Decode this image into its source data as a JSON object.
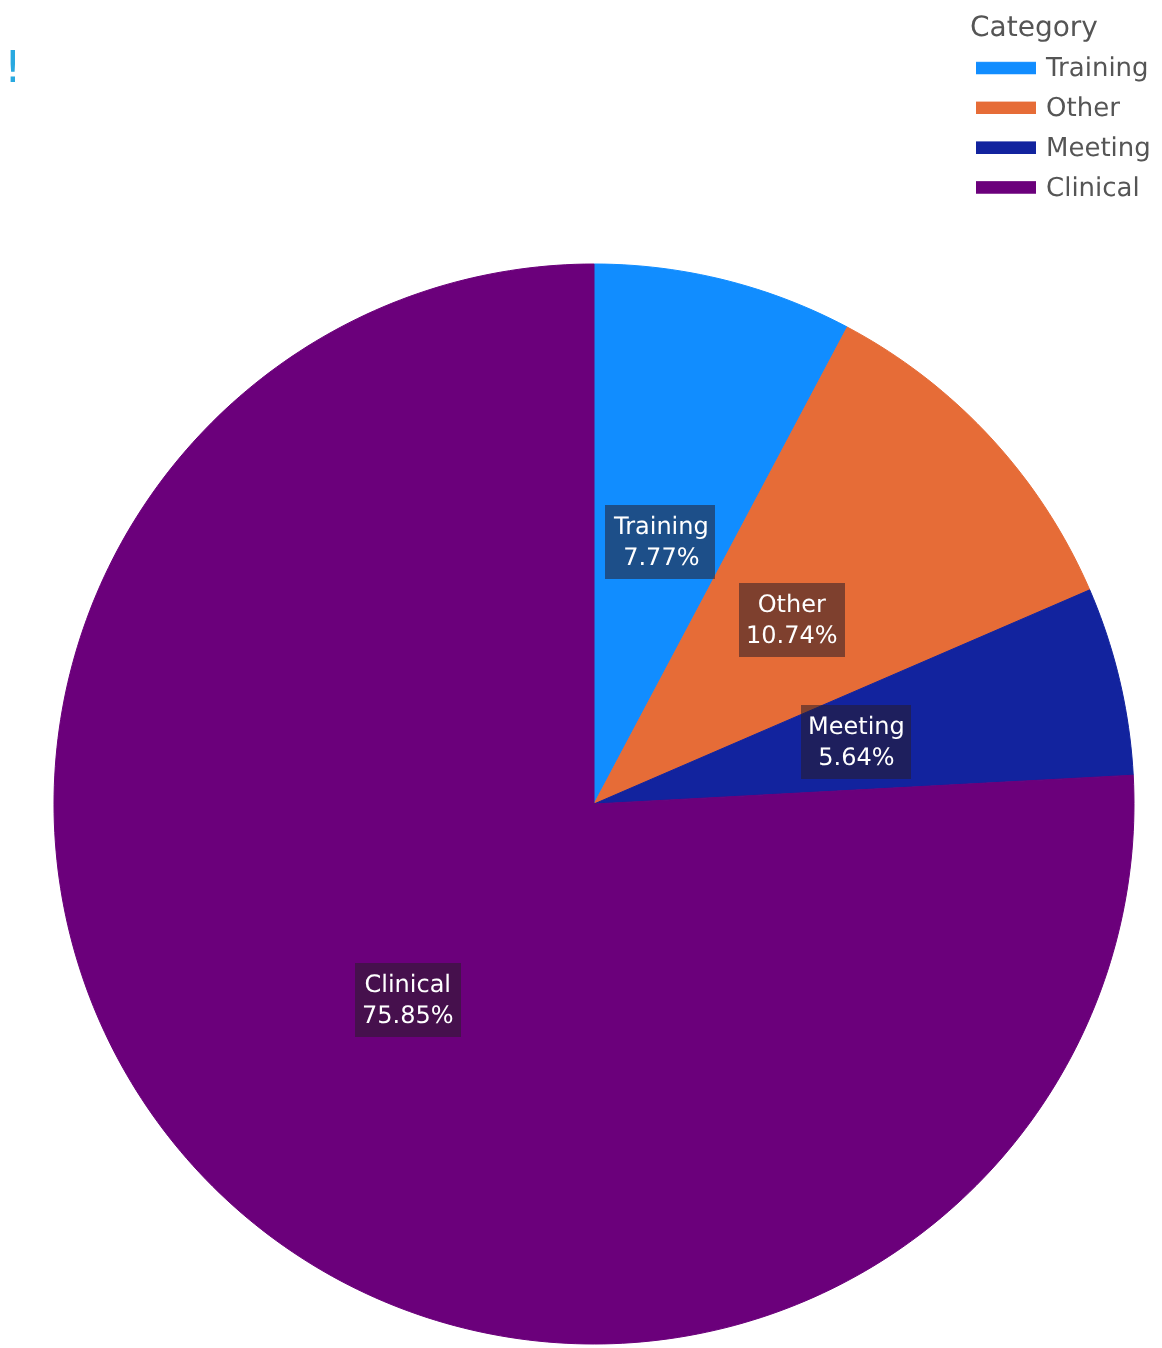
{
  "chart_data": {
    "type": "pie",
    "title": "!",
    "legend_title": "Category",
    "legend": "top right",
    "categories": [
      "Training",
      "Other",
      "Meeting",
      "Clinical"
    ],
    "values": [
      7.77,
      10.74,
      5.64,
      75.85
    ],
    "value_labels": [
      "7.77%",
      "10.74%",
      "5.64%",
      "75.85%"
    ],
    "colors": [
      "#118dff",
      "#e66c37",
      "#12239e",
      "#6b007b"
    ]
  }
}
